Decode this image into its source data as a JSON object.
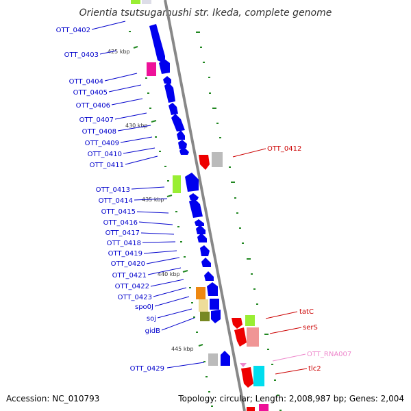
{
  "title": "Orientia tsutsugamushi str. Ikeda, complete genome",
  "accession": "Accession: NC_010793",
  "topology": "Topology: circular; Length: 2,008,987 bp; Genes: 2,004",
  "colors": {
    "backbone": "#888888",
    "gene_label": "#0000cc",
    "red_label": "#cc0000",
    "rna_label": "#ee88cc",
    "tick": "#228822"
  },
  "ticks": [
    {
      "label": "425 kbp"
    },
    {
      "label": "430 kbp"
    },
    {
      "label": "435 kbp"
    },
    {
      "label": "440 kbp"
    },
    {
      "label": "445 kbp"
    }
  ],
  "left_genes": [
    {
      "label": "OTT_0402"
    },
    {
      "label": "OTT_0403"
    },
    {
      "label": "OTT_0404"
    },
    {
      "label": "OTT_0405"
    },
    {
      "label": "OTT_0406"
    },
    {
      "label": "OTT_0407"
    },
    {
      "label": "OTT_0408"
    },
    {
      "label": "OTT_0409"
    },
    {
      "label": "OTT_0410"
    },
    {
      "label": "OTT_0411"
    },
    {
      "label": "OTT_0413"
    },
    {
      "label": "OTT_0414"
    },
    {
      "label": "OTT_0415"
    },
    {
      "label": "OTT_0416"
    },
    {
      "label": "OTT_0417"
    },
    {
      "label": "OTT_0418"
    },
    {
      "label": "OTT_0419"
    },
    {
      "label": "OTT_0420"
    },
    {
      "label": "OTT_0421"
    },
    {
      "label": "OTT_0422"
    },
    {
      "label": "OTT_0423"
    },
    {
      "label": "spo0J"
    },
    {
      "label": "soj"
    },
    {
      "label": "gidB"
    },
    {
      "label": "OTT_0429"
    }
  ],
  "right_genes": [
    {
      "label": "OTT_0412",
      "kind": "red"
    },
    {
      "label": "tatC",
      "kind": "red"
    },
    {
      "label": "serS",
      "kind": "red"
    },
    {
      "label": "OTT_RNA007",
      "kind": "rna"
    },
    {
      "label": "tlc2",
      "kind": "red"
    }
  ]
}
